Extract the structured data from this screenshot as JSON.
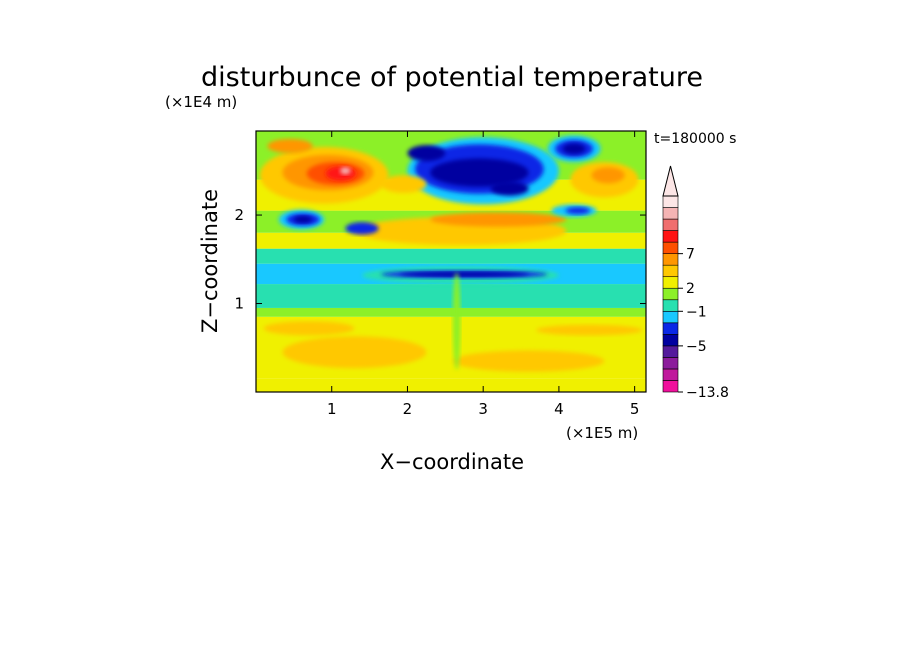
{
  "chart_data": {
    "type": "heatmap",
    "title": "disturbunce of potential temperature",
    "xlabel": "X−coordinate",
    "ylabel": "Z−coordinate",
    "x_unit": "(×1E5 m)",
    "y_unit": "(×1E4 m)",
    "time_label": "t=180000 s",
    "xlim": [
      0,
      5.15
    ],
    "ylim": [
      0,
      2.95
    ],
    "x_ticks": [
      {
        "value": 1,
        "label": "1"
      },
      {
        "value": 2,
        "label": "2"
      },
      {
        "value": 3,
        "label": "3"
      },
      {
        "value": 4,
        "label": "4"
      },
      {
        "value": 5,
        "label": "5"
      }
    ],
    "y_ticks": [
      {
        "value": 1,
        "label": "1"
      },
      {
        "value": 2,
        "label": "2"
      }
    ],
    "colorbar": {
      "extend_max": true,
      "colors": [
        "#f0109c",
        "#c0189c",
        "#8c1c9c",
        "#541a9c",
        "#0000a0",
        "#0a28e6",
        "#19c8ff",
        "#28e0b0",
        "#8cf028",
        "#f0f000",
        "#ffc800",
        "#ff9600",
        "#ff5000",
        "#ff1414",
        "#f06e6e",
        "#f5b4b4",
        "#fce6e6"
      ],
      "labels": [
        {
          "index": 0,
          "text": "−13.8"
        },
        {
          "index": 4,
          "text": "−5"
        },
        {
          "index": 7,
          "text": "−1"
        },
        {
          "index": 9,
          "text": "2"
        },
        {
          "index": 12,
          "text": "7"
        }
      ]
    },
    "bands": [
      {
        "z": [
          0.0,
          0.15
        ],
        "color": "#f0f000"
      },
      {
        "z": [
          0.15,
          0.85
        ],
        "color": "#f0f000"
      },
      {
        "z": [
          0.85,
          0.95
        ],
        "color": "#8cf028"
      },
      {
        "z": [
          0.95,
          1.22
        ],
        "color": "#28e0b0"
      },
      {
        "z": [
          1.22,
          1.45
        ],
        "color": "#19c8ff"
      },
      {
        "z": [
          1.45,
          1.62
        ],
        "color": "#28e0b0"
      },
      {
        "z": [
          1.62,
          1.8
        ],
        "color": "#f0f000"
      },
      {
        "z": [
          1.8,
          2.05
        ],
        "color": "#8cf028"
      },
      {
        "z": [
          2.05,
          2.4
        ],
        "color": "#f0f000"
      },
      {
        "z": [
          2.4,
          2.95
        ],
        "color": "#8cf028"
      }
    ],
    "features": [
      {
        "shape": "ellipse",
        "cx": 1.3,
        "cy": 0.45,
        "rx": 0.95,
        "ry": 0.18,
        "color": "#ffc800"
      },
      {
        "shape": "ellipse",
        "cx": 3.6,
        "cy": 0.35,
        "rx": 1.0,
        "ry": 0.12,
        "color": "#ffc800"
      },
      {
        "shape": "ellipse",
        "cx": 0.7,
        "cy": 0.72,
        "rx": 0.6,
        "ry": 0.08,
        "color": "#ffc800"
      },
      {
        "shape": "ellipse",
        "cx": 4.4,
        "cy": 0.7,
        "rx": 0.7,
        "ry": 0.06,
        "color": "#ffc800"
      },
      {
        "shape": "ellipse",
        "cx": 2.7,
        "cy": 1.32,
        "rx": 1.3,
        "ry": 0.1,
        "color": "#28e0b0"
      },
      {
        "shape": "ellipse",
        "cx": 2.75,
        "cy": 1.33,
        "rx": 1.1,
        "ry": 0.045,
        "color": "#0a28e6"
      },
      {
        "shape": "ellipse",
        "cx": 2.75,
        "cy": 1.33,
        "rx": 0.85,
        "ry": 0.025,
        "color": "#0000a0"
      },
      {
        "shape": "ellipse",
        "cx": 2.7,
        "cy": 1.82,
        "rx": 1.4,
        "ry": 0.16,
        "color": "#ffc800"
      },
      {
        "shape": "ellipse",
        "cx": 3.2,
        "cy": 1.95,
        "rx": 0.9,
        "ry": 0.08,
        "color": "#ff9600"
      },
      {
        "shape": "ellipse",
        "cx": 0.9,
        "cy": 2.45,
        "rx": 0.85,
        "ry": 0.32,
        "color": "#ffc800"
      },
      {
        "shape": "ellipse",
        "cx": 0.95,
        "cy": 2.48,
        "rx": 0.6,
        "ry": 0.2,
        "color": "#ff9600"
      },
      {
        "shape": "ellipse",
        "cx": 1.05,
        "cy": 2.47,
        "rx": 0.38,
        "ry": 0.13,
        "color": "#ff5000"
      },
      {
        "shape": "ellipse",
        "cx": 1.12,
        "cy": 2.47,
        "rx": 0.2,
        "ry": 0.08,
        "color": "#ff1414"
      },
      {
        "shape": "ellipse",
        "cx": 1.18,
        "cy": 2.5,
        "rx": 0.07,
        "ry": 0.04,
        "color": "#f5b4b4"
      },
      {
        "shape": "ellipse",
        "cx": 0.6,
        "cy": 1.95,
        "rx": 0.3,
        "ry": 0.11,
        "color": "#19c8ff"
      },
      {
        "shape": "ellipse",
        "cx": 0.62,
        "cy": 1.95,
        "rx": 0.22,
        "ry": 0.07,
        "color": "#0a28e6"
      },
      {
        "shape": "ellipse",
        "cx": 0.62,
        "cy": 1.95,
        "rx": 0.12,
        "ry": 0.04,
        "color": "#0000a0"
      },
      {
        "shape": "ellipse",
        "cx": 1.4,
        "cy": 1.85,
        "rx": 0.22,
        "ry": 0.07,
        "color": "#0a28e6"
      },
      {
        "shape": "ellipse",
        "cx": 0.45,
        "cy": 2.78,
        "rx": 0.3,
        "ry": 0.08,
        "color": "#ff9600"
      },
      {
        "shape": "ellipse",
        "cx": 3.0,
        "cy": 2.5,
        "rx": 1.0,
        "ry": 0.38,
        "color": "#19c8ff"
      },
      {
        "shape": "ellipse",
        "cx": 2.95,
        "cy": 2.52,
        "rx": 0.85,
        "ry": 0.28,
        "color": "#0a28e6"
      },
      {
        "shape": "ellipse",
        "cx": 2.95,
        "cy": 2.48,
        "rx": 0.65,
        "ry": 0.16,
        "color": "#0000a0"
      },
      {
        "shape": "ellipse",
        "cx": 2.25,
        "cy": 2.7,
        "rx": 0.25,
        "ry": 0.09,
        "color": "#0000a0"
      },
      {
        "shape": "ellipse",
        "cx": 3.35,
        "cy": 2.3,
        "rx": 0.25,
        "ry": 0.08,
        "color": "#0000a0"
      },
      {
        "shape": "ellipse",
        "cx": 4.2,
        "cy": 2.75,
        "rx": 0.35,
        "ry": 0.15,
        "color": "#19c8ff"
      },
      {
        "shape": "ellipse",
        "cx": 4.2,
        "cy": 2.75,
        "rx": 0.25,
        "ry": 0.1,
        "color": "#0a28e6"
      },
      {
        "shape": "ellipse",
        "cx": 4.2,
        "cy": 2.75,
        "rx": 0.15,
        "ry": 0.06,
        "color": "#0000a0"
      },
      {
        "shape": "ellipse",
        "cx": 4.6,
        "cy": 2.4,
        "rx": 0.45,
        "ry": 0.2,
        "color": "#ffc800"
      },
      {
        "shape": "ellipse",
        "cx": 4.65,
        "cy": 2.45,
        "rx": 0.22,
        "ry": 0.09,
        "color": "#ff9600"
      },
      {
        "shape": "ellipse",
        "cx": 4.2,
        "cy": 2.05,
        "rx": 0.3,
        "ry": 0.07,
        "color": "#19c8ff"
      },
      {
        "shape": "ellipse",
        "cx": 4.25,
        "cy": 2.05,
        "rx": 0.16,
        "ry": 0.04,
        "color": "#0a28e6"
      },
      {
        "shape": "ellipse",
        "cx": 1.95,
        "cy": 2.35,
        "rx": 0.3,
        "ry": 0.1,
        "color": "#ffc800"
      },
      {
        "shape": "ellipse",
        "cx": 2.65,
        "cy": 0.8,
        "rx": 0.05,
        "ry": 0.55,
        "color": "#8cf028"
      }
    ]
  }
}
